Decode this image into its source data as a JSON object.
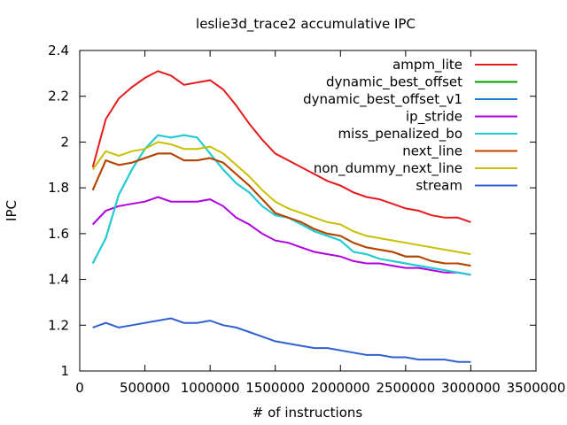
{
  "chart_data": {
    "type": "line",
    "title": "leslie3d_trace2 accumulative IPC",
    "xlabel": "# of instructions",
    "ylabel": "IPC",
    "xlim": [
      0,
      3500000
    ],
    "ylim": [
      1,
      2.4
    ],
    "xticks": [
      0,
      500000,
      1000000,
      1500000,
      2000000,
      2500000,
      3000000,
      3500000
    ],
    "yticks": [
      1,
      1.2,
      1.4,
      1.6,
      1.8,
      2,
      2.2,
      2.4
    ],
    "xtick_labels": [
      "0",
      "500000",
      "1000000",
      "1500000",
      "2000000",
      "2500000",
      "3000000",
      "3500000"
    ],
    "ytick_labels": [
      "1",
      "1.2",
      "1.4",
      "1.6",
      "1.8",
      "2",
      "2.2",
      "2.4"
    ],
    "grid": false,
    "legend_position": "top-right",
    "x": [
      100000,
      200000,
      300000,
      400000,
      500000,
      600000,
      700000,
      800000,
      900000,
      1000000,
      1100000,
      1200000,
      1300000,
      1400000,
      1500000,
      1600000,
      1700000,
      1800000,
      1900000,
      2000000,
      2100000,
      2200000,
      2300000,
      2400000,
      2500000,
      2600000,
      2700000,
      2800000,
      2900000,
      3000000
    ],
    "series": [
      {
        "name": "ampm_lite",
        "color": "#e41a1c",
        "values": [
          1.89,
          2.1,
          2.19,
          2.24,
          2.28,
          2.31,
          2.29,
          2.25,
          2.26,
          2.27,
          2.23,
          2.16,
          2.08,
          2.01,
          1.95,
          1.92,
          1.89,
          1.86,
          1.83,
          1.81,
          1.78,
          1.76,
          1.75,
          1.73,
          1.71,
          1.7,
          1.68,
          1.67,
          1.67,
          1.65
        ]
      },
      {
        "name": "dynamic_best_offset",
        "color": "#00a000",
        "values": [
          1.79,
          1.92,
          1.9,
          1.91,
          1.93,
          1.95,
          1.95,
          1.92,
          1.92,
          1.93,
          1.91,
          1.86,
          1.81,
          1.75,
          1.69,
          1.67,
          1.65,
          1.62,
          1.6,
          1.59,
          1.56,
          1.54,
          1.53,
          1.52,
          1.5,
          1.5,
          1.48,
          1.47,
          1.47,
          1.46
        ]
      },
      {
        "name": "dynamic_best_offset_v1",
        "color": "#1e78c8",
        "values": [
          1.47,
          1.58,
          1.77,
          1.88,
          1.97,
          2.03,
          2.02,
          2.03,
          2.02,
          1.95,
          1.88,
          1.82,
          1.78,
          1.72,
          1.68,
          1.67,
          1.64,
          1.61,
          1.59,
          1.57,
          1.52,
          1.51,
          1.49,
          1.48,
          1.47,
          1.46,
          1.45,
          1.44,
          1.43,
          1.42
        ]
      },
      {
        "name": "ip_stride",
        "color": "#b000e0",
        "values": [
          1.64,
          1.7,
          1.72,
          1.73,
          1.74,
          1.76,
          1.74,
          1.74,
          1.74,
          1.75,
          1.72,
          1.67,
          1.64,
          1.6,
          1.57,
          1.56,
          1.54,
          1.52,
          1.51,
          1.5,
          1.48,
          1.47,
          1.47,
          1.46,
          1.45,
          1.45,
          1.44,
          1.43,
          1.43,
          1.42
        ]
      },
      {
        "name": "miss_penalized_bo",
        "color": "#20d0d0",
        "values": [
          1.47,
          1.58,
          1.77,
          1.88,
          1.97,
          2.03,
          2.02,
          2.03,
          2.02,
          1.95,
          1.88,
          1.82,
          1.78,
          1.72,
          1.68,
          1.67,
          1.64,
          1.61,
          1.59,
          1.57,
          1.52,
          1.51,
          1.49,
          1.48,
          1.47,
          1.46,
          1.45,
          1.44,
          1.43,
          1.42
        ]
      },
      {
        "name": "next_line",
        "color": "#c04000",
        "values": [
          1.79,
          1.92,
          1.9,
          1.91,
          1.93,
          1.95,
          1.95,
          1.92,
          1.92,
          1.93,
          1.91,
          1.86,
          1.81,
          1.75,
          1.69,
          1.67,
          1.65,
          1.62,
          1.6,
          1.59,
          1.56,
          1.54,
          1.53,
          1.52,
          1.5,
          1.5,
          1.48,
          1.47,
          1.47,
          1.46
        ]
      },
      {
        "name": "non_dummy_next_line",
        "color": "#c8c000",
        "values": [
          1.88,
          1.96,
          1.94,
          1.96,
          1.97,
          2.0,
          1.99,
          1.97,
          1.97,
          1.98,
          1.95,
          1.9,
          1.85,
          1.79,
          1.74,
          1.71,
          1.69,
          1.67,
          1.65,
          1.64,
          1.61,
          1.59,
          1.58,
          1.57,
          1.56,
          1.55,
          1.54,
          1.53,
          1.52,
          1.51
        ]
      },
      {
        "name": "stream",
        "color": "#3060d0",
        "values": [
          1.19,
          1.21,
          1.19,
          1.2,
          1.21,
          1.22,
          1.23,
          1.21,
          1.21,
          1.22,
          1.2,
          1.19,
          1.17,
          1.15,
          1.13,
          1.12,
          1.11,
          1.1,
          1.1,
          1.09,
          1.08,
          1.07,
          1.07,
          1.06,
          1.06,
          1.05,
          1.05,
          1.05,
          1.04,
          1.04
        ]
      }
    ]
  }
}
